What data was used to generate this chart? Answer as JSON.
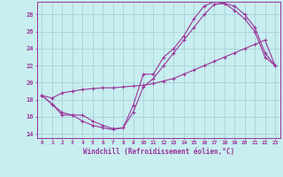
{
  "title": "",
  "xlabel": "Windchill (Refroidissement éolien,°C)",
  "bg_color": "#c8eef0",
  "line_color": "#993399",
  "grid_color": "#a0ccd4",
  "xlim": [
    -0.5,
    23.5
  ],
  "ylim": [
    13.5,
    29.5
  ],
  "yticks": [
    14,
    16,
    18,
    20,
    22,
    24,
    26,
    28
  ],
  "xticks": [
    0,
    1,
    2,
    3,
    4,
    5,
    6,
    7,
    8,
    9,
    10,
    11,
    12,
    13,
    14,
    15,
    16,
    17,
    18,
    19,
    20,
    21,
    22,
    23
  ],
  "line1_x": [
    0,
    1,
    2,
    3,
    4,
    5,
    6,
    7,
    8,
    9,
    10,
    11,
    12,
    13,
    14,
    15,
    16,
    17,
    18,
    19,
    20,
    21,
    22,
    23
  ],
  "line1_y": [
    18.5,
    17.5,
    16.2,
    16.2,
    15.5,
    15.0,
    14.7,
    14.5,
    14.7,
    17.3,
    21.0,
    21.0,
    23.0,
    24.0,
    25.5,
    27.5,
    29.0,
    29.5,
    29.3,
    29.0,
    28.0,
    26.5,
    23.5,
    22.0
  ],
  "line2_x": [
    0,
    1,
    2,
    3,
    4,
    5,
    6,
    7,
    8,
    9,
    10,
    11,
    12,
    13,
    14,
    15,
    16,
    17,
    18,
    19,
    20,
    21,
    22,
    23
  ],
  "line2_y": [
    18.5,
    18.2,
    18.8,
    19.0,
    19.2,
    19.3,
    19.4,
    19.4,
    19.5,
    19.6,
    19.7,
    19.9,
    20.2,
    20.5,
    21.0,
    21.5,
    22.0,
    22.5,
    23.0,
    23.5,
    24.0,
    24.5,
    25.0,
    22.0
  ],
  "line3_x": [
    0,
    1,
    2,
    3,
    4,
    5,
    6,
    7,
    8,
    9,
    10,
    11,
    12,
    13,
    14,
    15,
    16,
    17,
    18,
    19,
    20,
    21,
    22,
    23
  ],
  "line3_y": [
    18.5,
    17.5,
    16.5,
    16.2,
    16.2,
    15.5,
    15.0,
    14.6,
    14.7,
    16.5,
    19.5,
    20.5,
    22.0,
    23.5,
    25.0,
    26.5,
    28.0,
    29.2,
    29.3,
    28.5,
    27.5,
    26.0,
    23.0,
    22.0
  ]
}
